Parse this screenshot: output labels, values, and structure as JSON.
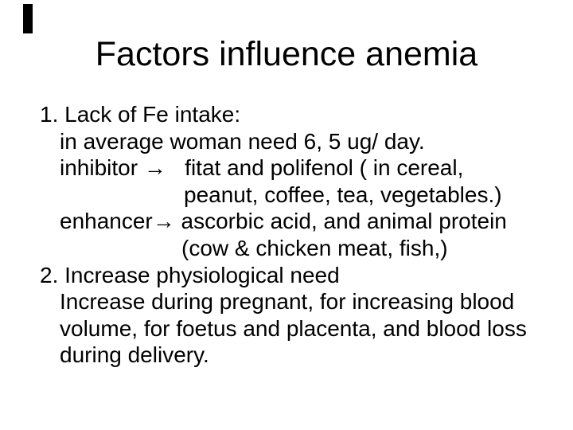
{
  "slide": {
    "background_color": "#ffffff",
    "text_color": "#000000",
    "title": "Factors influence anemia",
    "body_lines": [
      {
        "text": "1. Lack of Fe intake:",
        "indent": 50
      },
      {
        "text": "in average woman need 6, 5 ug/ day.",
        "indent": 75
      },
      {
        "text": "inhibitor →   fitat and polifenol ( in cereal,",
        "indent": 75
      },
      {
        "text": "peanut, coffee, tea, vegetables.)",
        "indent": 231
      },
      {
        "text": "enhancer→ ascorbic acid, and animal protein",
        "indent": 75
      },
      {
        "text": "(cow & chicken meat, fish,)",
        "indent": 228
      },
      {
        "text": "2. Increase physiological need",
        "indent": 50
      },
      {
        "text": "Increase during pregnant, for increasing blood",
        "indent": 75
      },
      {
        "text": "volume, for foetus and placenta, and blood loss",
        "indent": 75
      },
      {
        "text": "during delivery.",
        "indent": 75
      }
    ]
  }
}
